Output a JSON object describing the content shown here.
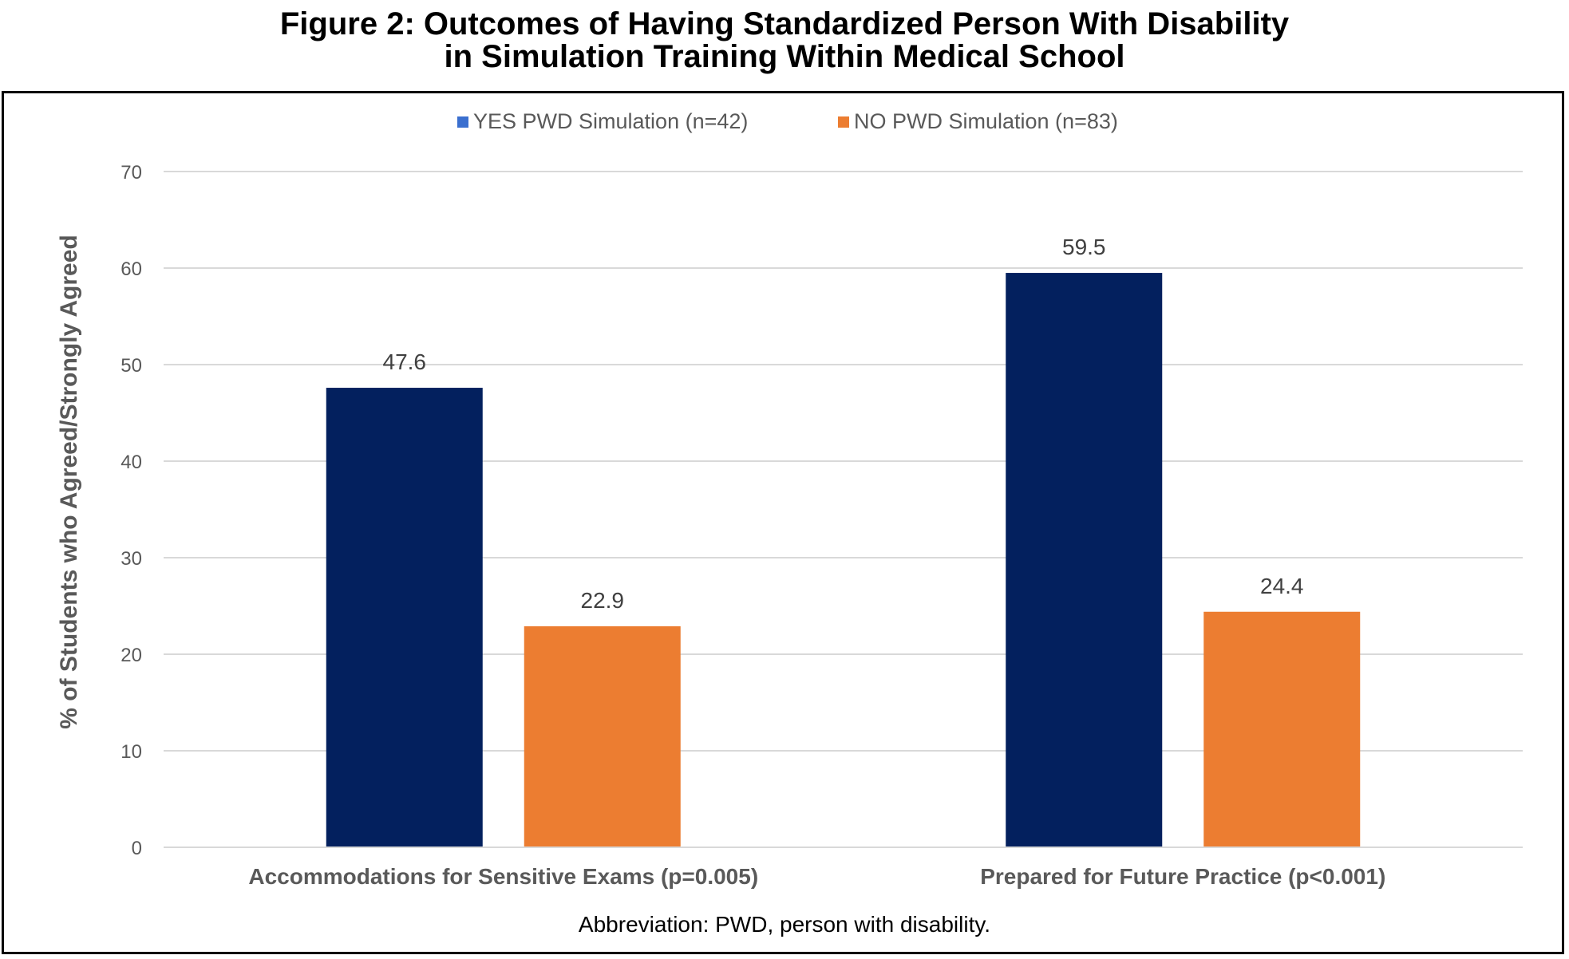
{
  "figure": {
    "title_line1": "Figure 2: Outcomes of Having Standardized Person With Disability",
    "title_line2": "in Simulation Training Within Medical School",
    "caption": "Abbreviation: PWD, person with disability."
  },
  "chart_data": {
    "type": "bar",
    "title": "Figure 2: Outcomes of Having Standardized Person With Disability in Simulation Training Within Medical School",
    "xlabel": "",
    "ylabel": "% of Students who Agreed/Strongly Agreed",
    "ylim": [
      0,
      70
    ],
    "yticks": [
      0,
      10,
      20,
      30,
      40,
      50,
      60,
      70
    ],
    "grid": true,
    "legend_position": "top-center",
    "categories": [
      "Accommodations for Sensitive Exams (p=0.005)",
      "Prepared for Future Practice (p<0.001)"
    ],
    "series": [
      {
        "name": "YES PWD Simulation (n=42)",
        "values": [
          47.6,
          59.5
        ],
        "labels": [
          "47.6",
          "59.5"
        ],
        "color": "#03205e",
        "legend_color": "#3a6fcf"
      },
      {
        "name": "NO PWD Simulation (n=83)",
        "values": [
          22.9,
          24.4
        ],
        "labels": [
          "22.9",
          "24.4"
        ],
        "color": "#ec7d31",
        "legend_color": "#ec7d31"
      }
    ]
  }
}
